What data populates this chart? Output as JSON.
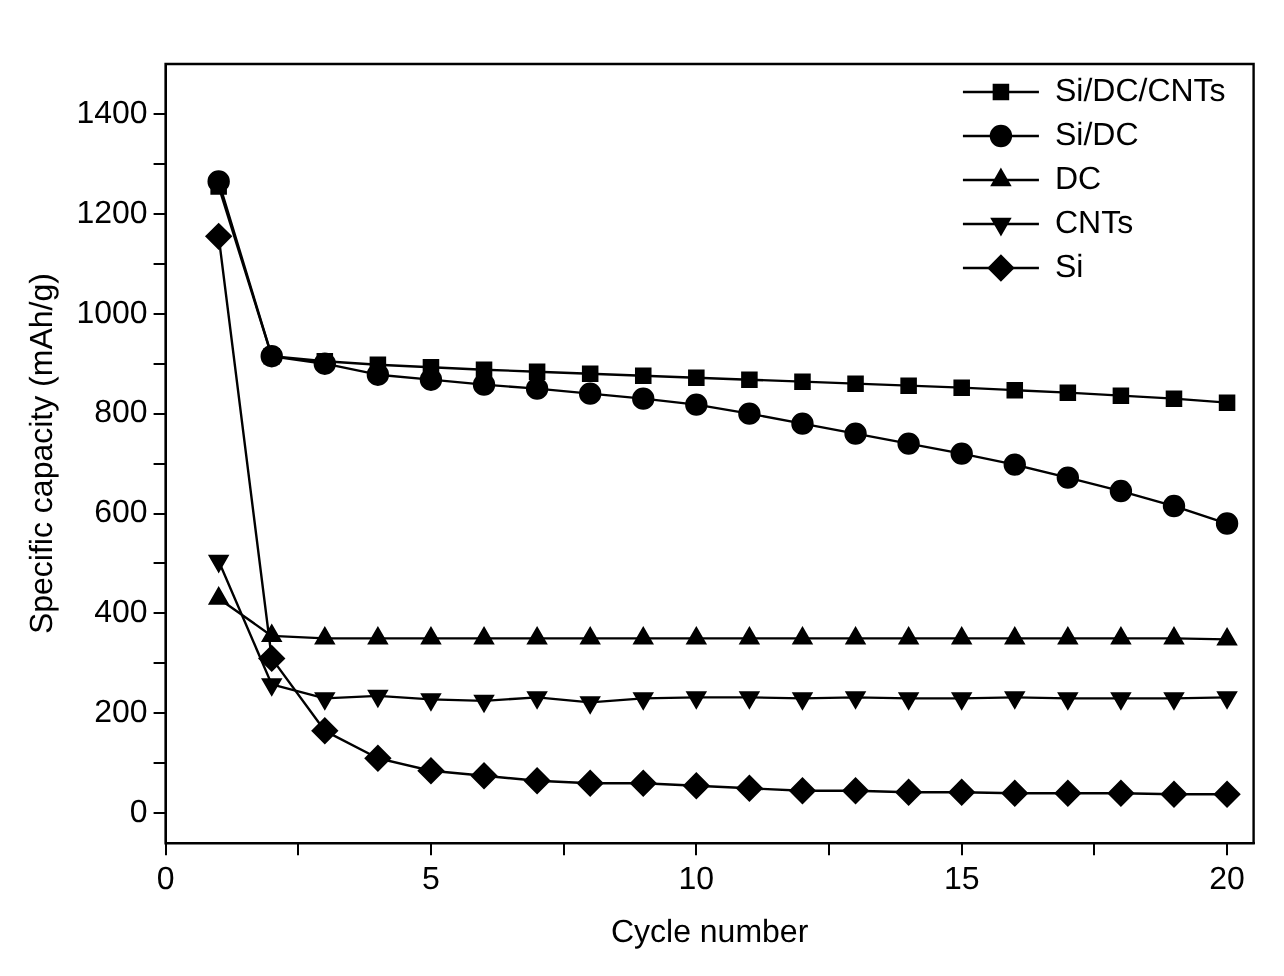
{
  "chart_data": {
    "type": "line",
    "xlabel": "Cycle number",
    "ylabel": "Specific capacity (mAh/g)",
    "x": [
      1,
      2,
      3,
      4,
      5,
      6,
      7,
      8,
      9,
      10,
      11,
      12,
      13,
      14,
      15,
      16,
      17,
      18,
      19,
      20
    ],
    "series": [
      {
        "name": "Si/DC/CNTs",
        "color": "#000000",
        "marker": "square",
        "values": [
          1255,
          915,
          905,
          898,
          893,
          888,
          884,
          880,
          876,
          872,
          868,
          864,
          860,
          856,
          852,
          847,
          842,
          836,
          830,
          822
        ]
      },
      {
        "name": "Si/DC",
        "color": "#000000",
        "marker": "circle",
        "values": [
          1265,
          915,
          900,
          878,
          868,
          858,
          850,
          840,
          830,
          818,
          800,
          780,
          760,
          740,
          720,
          698,
          672,
          645,
          615,
          580
        ]
      },
      {
        "name": "DC",
        "color": "#000000",
        "marker": "triangle",
        "values": [
          430,
          355,
          350,
          350,
          350,
          350,
          350,
          350,
          350,
          350,
          350,
          350,
          350,
          350,
          350,
          350,
          350,
          350,
          350,
          348
        ]
      },
      {
        "name": "CNTs",
        "color": "#000000",
        "marker": "triangle-down",
        "values": [
          505,
          258,
          230,
          235,
          228,
          225,
          232,
          222,
          230,
          232,
          232,
          230,
          232,
          230,
          230,
          232,
          230,
          230,
          230,
          232
        ]
      },
      {
        "name": "Si",
        "color": "#000000",
        "marker": "diamond",
        "values": [
          1155,
          310,
          165,
          110,
          85,
          75,
          65,
          60,
          60,
          55,
          50,
          45,
          45,
          42,
          42,
          40,
          40,
          40,
          38,
          38
        ]
      }
    ],
    "xlim": [
      0,
      20.5
    ],
    "xticks": [
      0,
      {
        "value": 2.5,
        "label": null
      },
      5,
      {
        "value": 7.5,
        "label": null
      },
      10,
      {
        "value": 12.5,
        "label": null
      },
      15,
      {
        "value": 17.5,
        "label": null
      },
      20
    ],
    "ylim": [
      -60,
      1500
    ],
    "yticks": [
      0,
      {
        "value": 100,
        "label": null
      },
      200,
      {
        "value": 300,
        "label": null
      },
      400,
      {
        "value": 500,
        "label": null
      },
      600,
      {
        "value": 700,
        "label": null
      },
      800,
      {
        "value": 900,
        "label": null
      },
      1000,
      {
        "value": 1100,
        "label": null
      },
      1200,
      {
        "value": 1300,
        "label": null
      },
      1400
    ],
    "grid": false,
    "legend": "top right",
    "line_style": "solid"
  }
}
